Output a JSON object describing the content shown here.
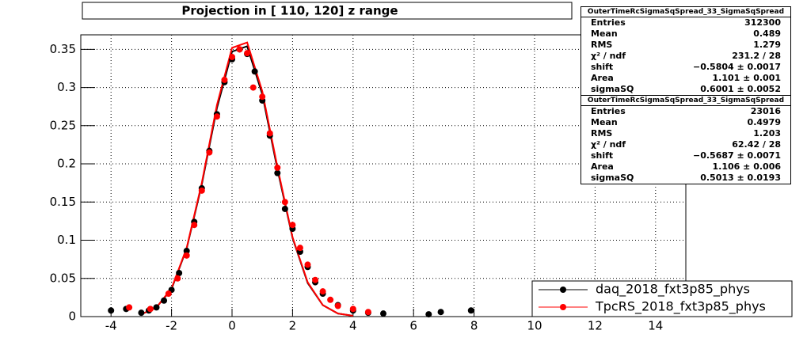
{
  "chart_data": {
    "type": "scatter",
    "title": "Projection in [ 110, 120] z range",
    "xlim": [
      -5,
      15
    ],
    "ylim": [
      0,
      0.369
    ],
    "xticks": [
      -4,
      -2,
      0,
      2,
      4,
      6,
      8,
      10,
      12,
      14
    ],
    "yticks": [
      0,
      0.05,
      0.1,
      0.15,
      0.2,
      0.25,
      0.3,
      0.35
    ],
    "grid": true,
    "legend": "bottom-right",
    "series": [
      {
        "name": "daq_2018_fxt3p85_phys",
        "color": "#000000",
        "x": [
          -4,
          -3.5,
          -3,
          -2.75,
          -2.5,
          -2.25,
          -2,
          -1.75,
          -1.5,
          -1.25,
          -1,
          -0.75,
          -0.5,
          -0.25,
          0,
          0.25,
          0.5,
          0.75,
          1,
          1.25,
          1.5,
          1.75,
          2,
          2.25,
          2.5,
          2.75,
          3,
          3.5,
          4,
          4.5,
          5,
          6.5,
          6.9,
          7.9
        ],
        "values": [
          0.008,
          0.01,
          0.005,
          0.008,
          0.012,
          0.021,
          0.035,
          0.057,
          0.086,
          0.124,
          0.168,
          0.217,
          0.265,
          0.307,
          0.337,
          0.35,
          0.344,
          0.321,
          0.283,
          0.237,
          0.188,
          0.141,
          0.115,
          0.085,
          0.065,
          0.045,
          0.03,
          0.015,
          0.008,
          0.005,
          0.004,
          0.003,
          0.006,
          0.008
        ]
      },
      {
        "name": "TpcRS_2018_fxt3p85_phys",
        "color": "#ff0000",
        "x": [
          -3.4,
          -2.7,
          -2.1,
          -1.8,
          -1.5,
          -1.25,
          -1,
          -0.75,
          -0.5,
          -0.25,
          0,
          0.25,
          0.5,
          0.7,
          1,
          1.25,
          1.5,
          1.75,
          2,
          2.25,
          2.5,
          2.75,
          3,
          3.25,
          3.5,
          4,
          4.5
        ],
        "values": [
          0.012,
          0.01,
          0.03,
          0.05,
          0.08,
          0.12,
          0.165,
          0.215,
          0.262,
          0.31,
          0.34,
          0.35,
          0.345,
          0.3,
          0.288,
          0.24,
          0.195,
          0.15,
          0.12,
          0.09,
          0.068,
          0.048,
          0.033,
          0.022,
          0.014,
          0.01,
          0.006
        ]
      }
    ],
    "fits": [
      {
        "color": "#000000",
        "x": [
          -3,
          -2.5,
          -2,
          -1.5,
          -1,
          -0.5,
          0,
          0.5,
          1,
          1.5,
          2,
          2.5,
          3,
          3.5,
          4
        ],
        "values": [
          0.003,
          0.012,
          0.036,
          0.089,
          0.173,
          0.273,
          0.347,
          0.354,
          0.291,
          0.193,
          0.103,
          0.044,
          0.015,
          0.004,
          0.001
        ]
      },
      {
        "color": "#ff0000",
        "x": [
          -3,
          -2.5,
          -2,
          -1.5,
          -1,
          -0.5,
          0,
          0.5,
          1,
          1.5,
          2,
          2.5,
          3,
          3.5,
          4
        ],
        "values": [
          0.003,
          0.012,
          0.037,
          0.09,
          0.175,
          0.277,
          0.352,
          0.359,
          0.295,
          0.196,
          0.104,
          0.045,
          0.015,
          0.004,
          0.001
        ]
      }
    ]
  },
  "stats": [
    {
      "title": "OuterTimeRcSigmaSqSpread_33_SigmaSqSpread",
      "rows": [
        [
          "Entries",
          "312300"
        ],
        [
          "Mean",
          "0.489"
        ],
        [
          "RMS",
          "1.279"
        ],
        [
          "χ² / ndf",
          "231.2 / 28"
        ],
        [
          "shift",
          "−0.5804 ± 0.0017"
        ],
        [
          "Area",
          "1.101 ± 0.001"
        ],
        [
          "sigmaSQ",
          "0.6001 ± 0.0052"
        ]
      ]
    },
    {
      "title": "OuterTimeRcSigmaSqSpread_33_SigmaSqSpread",
      "rows": [
        [
          "Entries",
          "23016"
        ],
        [
          "Mean",
          "0.4979"
        ],
        [
          "RMS",
          "1.203"
        ],
        [
          "χ² / ndf",
          "62.42 / 28"
        ],
        [
          "shift",
          "−0.5687 ± 0.0071"
        ],
        [
          "Area",
          "1.106 ± 0.006"
        ],
        [
          "sigmaSQ",
          "0.5013 ± 0.0193"
        ]
      ]
    }
  ]
}
